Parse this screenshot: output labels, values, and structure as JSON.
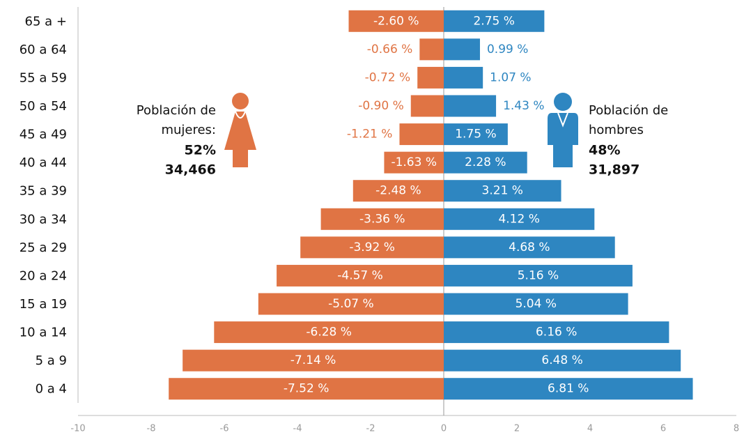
{
  "chart_data": {
    "type": "bar",
    "categories": [
      "65 a +",
      "60 a 64",
      "55 a 59",
      "50 a 54",
      "45 a 49",
      "40 a 44",
      "35 a 39",
      "30 a 34",
      "25 a 29",
      "20 a 24",
      "15 a 19",
      "10 a 14",
      "5 a 9",
      "0 a 4"
    ],
    "series": [
      {
        "color": "#e07444",
        "values": [
          -2.6,
          -0.66,
          -0.72,
          -0.9,
          -1.21,
          -1.63,
          -2.48,
          -3.36,
          -3.92,
          -4.57,
          -5.07,
          -6.28,
          -7.14,
          -7.52
        ],
        "value_labels": [
          "-2.60 %",
          "-0.66 %",
          "-0.72 %",
          "-0.90 %",
          "-1.21 %",
          "-1.63 %",
          "-2.48 %",
          "-3.36 %",
          "-3.92 %",
          "-4.57 %",
          "-5.07 %",
          "-6.28 %",
          "-7.14 %",
          "-7.52 %"
        ]
      },
      {
        "color": "#2e86c1",
        "values": [
          2.75,
          0.99,
          1.07,
          1.43,
          1.75,
          2.28,
          3.21,
          4.12,
          4.68,
          5.16,
          5.04,
          6.16,
          6.48,
          6.81
        ],
        "value_labels": [
          "2.75 %",
          "0.99 %",
          "1.07 %",
          "1.43 %",
          "1.75 %",
          "2.28 %",
          "3.21 %",
          "4.12 %",
          "4.68 %",
          "5.16 %",
          "5.04 %",
          "6.16 %",
          "6.48 %",
          "6.81 %"
        ]
      }
    ],
    "xlim": [
      -10,
      8
    ],
    "xticks": [
      -10,
      -8,
      -6,
      -4,
      -2,
      0,
      2,
      4,
      6,
      8
    ],
    "annotations": {
      "women": [
        "Población de",
        "mujeres:",
        "52%",
        "34,466"
      ],
      "men": [
        "Población de",
        "hombres",
        "48%",
        "31,897"
      ]
    }
  }
}
